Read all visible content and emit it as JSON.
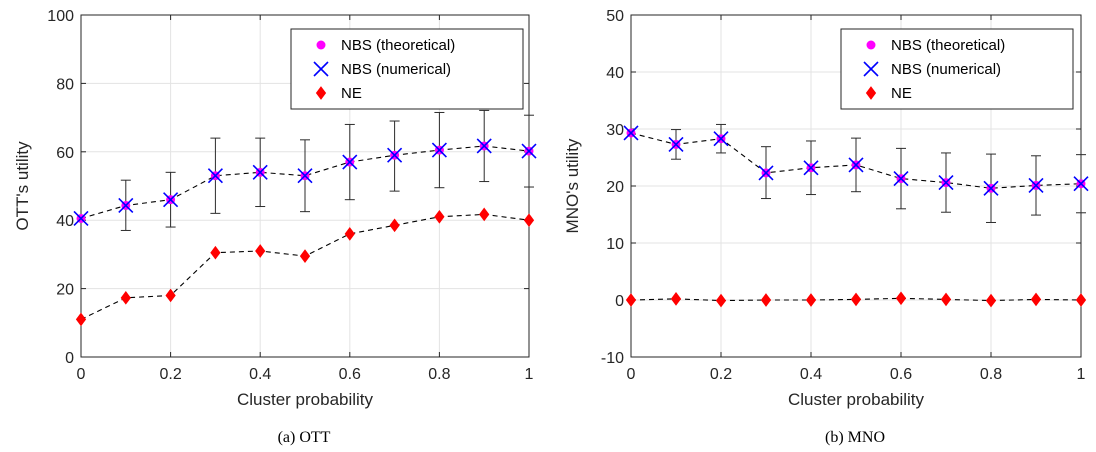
{
  "chart_data": [
    {
      "type": "scatter",
      "caption": "(a)  OTT",
      "xlabel": "Cluster probability",
      "ylabel": "OTT's utility",
      "xlim": [
        0,
        1
      ],
      "ylim": [
        0,
        100
      ],
      "xticks": [
        "0",
        "0.2",
        "0.4",
        "0.6",
        "0.8",
        "1"
      ],
      "yticks": [
        "0",
        "20",
        "40",
        "60",
        "80",
        "100"
      ],
      "grid": true,
      "legend_position": "top-right",
      "x": [
        0,
        0.1,
        0.2,
        0.3,
        0.4,
        0.5,
        0.6,
        0.7,
        0.8,
        0.9,
        1.0
      ],
      "series": [
        {
          "name": "NBS (theoretical)",
          "marker": "circle",
          "color": "#ff00ff",
          "values": [
            40.5,
            44.3,
            46.0,
            53.0,
            54.0,
            53.0,
            57.0,
            59.0,
            60.5,
            61.7,
            60.2
          ]
        },
        {
          "name": "NBS (numerical)",
          "marker": "x",
          "color": "#0000ff",
          "values": [
            40.5,
            44.3,
            46.0,
            53.0,
            54.0,
            53.0,
            57.0,
            59.0,
            60.5,
            61.7,
            60.2
          ],
          "err_low": [
            40.5,
            37.0,
            38.0,
            42.0,
            44.0,
            42.5,
            46.0,
            48.5,
            49.5,
            51.3,
            49.7
          ],
          "err_high": [
            40.5,
            51.7,
            54.0,
            64.0,
            64.0,
            63.5,
            68.0,
            69.0,
            71.5,
            72.1,
            70.7
          ]
        },
        {
          "name": "NE",
          "marker": "diamond",
          "color": "#ff0000",
          "values": [
            11.0,
            17.3,
            18.0,
            30.5,
            31.0,
            29.5,
            36.0,
            38.5,
            41.0,
            41.7,
            40.0
          ]
        }
      ]
    },
    {
      "type": "scatter",
      "caption": "(b)  MNO",
      "xlabel": "Cluster probability",
      "ylabel": "MNO's utility",
      "xlim": [
        0,
        1
      ],
      "ylim": [
        -10,
        50
      ],
      "xticks": [
        "0",
        "0.2",
        "0.4",
        "0.6",
        "0.8",
        "1"
      ],
      "yticks": [
        "-10",
        "0",
        "10",
        "20",
        "30",
        "40",
        "50"
      ],
      "grid": true,
      "legend_position": "top-right",
      "x": [
        0,
        0.1,
        0.2,
        0.3,
        0.4,
        0.5,
        0.6,
        0.7,
        0.8,
        0.9,
        1.0
      ],
      "series": [
        {
          "name": "NBS (theoretical)",
          "marker": "circle",
          "color": "#ff00ff",
          "values": [
            29.3,
            27.3,
            28.3,
            22.3,
            23.2,
            23.7,
            21.3,
            20.6,
            19.6,
            20.1,
            20.4
          ]
        },
        {
          "name": "NBS (numerical)",
          "marker": "x",
          "color": "#0000ff",
          "values": [
            29.3,
            27.3,
            28.3,
            22.3,
            23.2,
            23.7,
            21.3,
            20.6,
            19.6,
            20.1,
            20.4
          ],
          "err_low": [
            29.3,
            24.7,
            25.8,
            17.8,
            18.5,
            19.0,
            16.0,
            15.4,
            13.6,
            14.9,
            15.3
          ],
          "err_high": [
            29.3,
            29.9,
            30.8,
            26.9,
            27.9,
            28.4,
            26.6,
            25.8,
            25.6,
            25.3,
            25.5
          ]
        },
        {
          "name": "NE",
          "marker": "diamond",
          "color": "#ff0000",
          "values": [
            0.0,
            0.2,
            -0.1,
            0.0,
            0.0,
            0.1,
            0.3,
            0.1,
            -0.1,
            0.1,
            0.0
          ]
        }
      ]
    }
  ]
}
